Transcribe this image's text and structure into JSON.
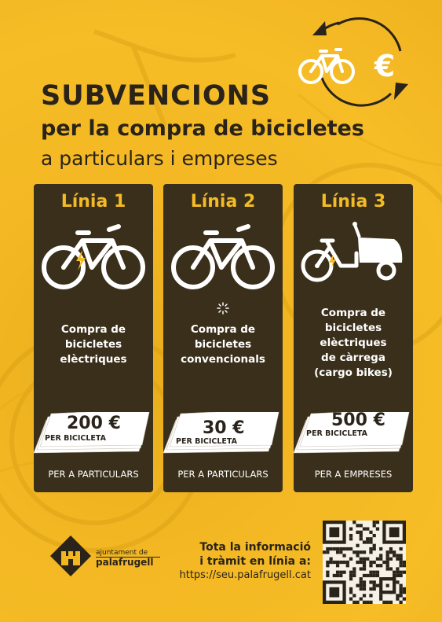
{
  "header": {
    "title": "SUBVENCIONS",
    "subtitle": "per la compra de bicicletes",
    "tagline": "a particulars i empreses"
  },
  "icons": {
    "cycle": "bike-euro-cycle-icon",
    "euro": "€"
  },
  "cards": [
    {
      "title": "Línia 1",
      "icon": "electric-bike-icon",
      "desc": [
        "Compra de",
        "bicicletes",
        "elèctriques"
      ],
      "amount": "200 €",
      "per": "PER BICICLETA",
      "audience": "PER A PARTICULARS"
    },
    {
      "title": "Línia 2",
      "icon": "conventional-bike-icon",
      "desc": [
        "Compra de",
        "bicicletes",
        "convencionals"
      ],
      "amount": "30 €",
      "per": "PER BICICLETA",
      "audience": "PER A PARTICULARS"
    },
    {
      "title": "Línia 3",
      "icon": "cargo-bike-icon",
      "desc": [
        "Compra de",
        "bicicletes",
        "elèctriques",
        "de càrrega",
        "(cargo bikes)"
      ],
      "amount": "500 €",
      "per": "PER BICICLETA",
      "audience": "PER A EMPRESES"
    }
  ],
  "footer": {
    "logo_small": "ajuntament de",
    "logo_big": "palafrugell",
    "info_line1": "Tota la informació",
    "info_line2": "i tràmit en línia a:",
    "url": "https://seu.palafrugell.cat"
  },
  "colors": {
    "background": "#f2b620",
    "dark": "#3a2f1b",
    "accent": "#f4bb25",
    "text": "#2a231a"
  }
}
